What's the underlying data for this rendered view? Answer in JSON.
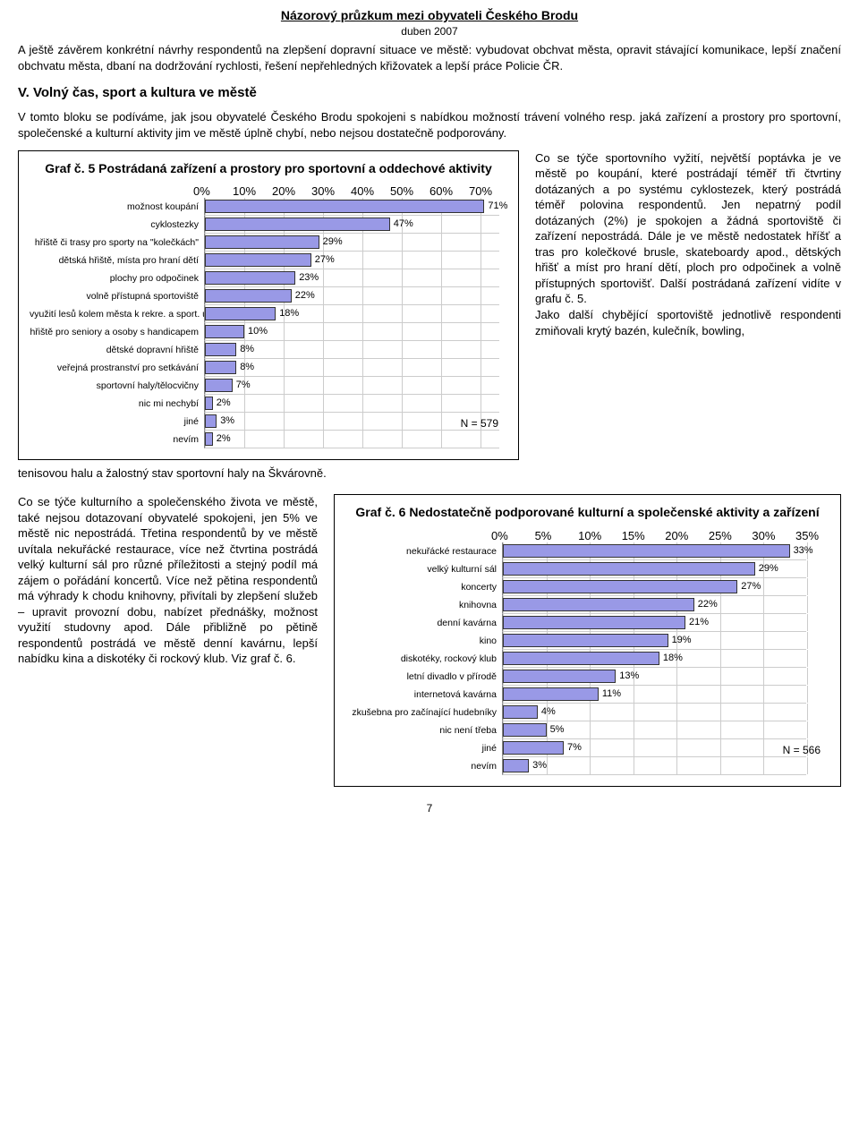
{
  "header": {
    "title": "Názorový průzkum mezi obyvateli Českého Brodu",
    "subtitle": "duben 2007"
  },
  "intro_para": "A ještě závěrem konkrétní návrhy respondentů na zlepšení dopravní situace ve městě: vybudovat obchvat města, opravit stávající komunikace, lepší značení obchvatu města, dbaní na dodržování rychlosti, řešení nepřehledných křižovatek a lepší práce Policie ČR.",
  "section_v": {
    "heading": "V.    Volný čas, sport a kultura ve městě",
    "para": "V tomto bloku se podíváme, jak jsou obyvatelé Českého Brodu spokojeni s nabídkou možností trávení volného resp. jaká zařízení a prostory pro sportovní, společenské a kulturní aktivity jim ve městě úplně chybí, nebo nejsou dostatečně podporovány."
  },
  "chart5": {
    "type": "bar",
    "title": "Graf č. 5 Postrádaná zařízení a prostory pro sportovní a oddechové aktivity",
    "label_width": 195,
    "track_width": 330,
    "x_max": 75,
    "ticks": [
      0,
      10,
      20,
      30,
      40,
      50,
      60,
      70
    ],
    "tick_suffix": "%",
    "bar_color": "#9999e6",
    "grid_color": "#cccccc",
    "border_color": "#333333",
    "label_fontsize": 10.5,
    "value_fontsize": 11,
    "n_label": "N = 579",
    "items": [
      {
        "label": "možnost koupání",
        "value": 71,
        "pct": "71%"
      },
      {
        "label": "cyklostezky",
        "value": 47,
        "pct": "47%"
      },
      {
        "label": "hřiště či trasy pro sporty na \"kolečkách\"",
        "value": 29,
        "pct": "29%"
      },
      {
        "label": "dětská hřiště, místa pro hraní dětí",
        "value": 27,
        "pct": "27%"
      },
      {
        "label": "plochy pro odpočinek",
        "value": 23,
        "pct": "23%"
      },
      {
        "label": "volně přístupná sportoviště",
        "value": 22,
        "pct": "22%"
      },
      {
        "label": "využití lesů kolem města k rekre. a sport. účelům",
        "value": 18,
        "pct": "18%"
      },
      {
        "label": "hřiště pro seniory a osoby s handicapem",
        "value": 10,
        "pct": "10%"
      },
      {
        "label": "dětské dopravní hřiště",
        "value": 8,
        "pct": "8%"
      },
      {
        "label": "veřejná prostranství pro setkávání",
        "value": 8,
        "pct": "8%"
      },
      {
        "label": "sportovní haly/tělocvičny",
        "value": 7,
        "pct": "7%"
      },
      {
        "label": "nic mi nechybí",
        "value": 2,
        "pct": "2%"
      },
      {
        "label": "jiné",
        "value": 3,
        "pct": "3%"
      },
      {
        "label": "nevím",
        "value": 2,
        "pct": "2%"
      }
    ]
  },
  "right_para5": "Co se týče sportovního vyžití, největší poptávka je ve městě po koupání, které postrádají téměř tři čtvrtiny dotázaných a po systému cyklostezek, který postrádá téměř polovina respondentů. Jen nepatrný podíl dotázaných (2%) je spokojen a žádná sportoviště či zařízení nepostrádá. Dále je ve městě nedostatek hříšť a tras pro kolečkové brusle, skateboardy apod., dětských hřišť a míst pro hraní dětí, ploch pro odpočinek a volně přístupných sportovišť. Další postrádaná zařízení vidíte v grafu č. 5.\nJako další chybějící sportoviště jednotlivě respondenti zmiňovali krytý bazén, kulečník, bowling,",
  "after_chart5": "tenisovou halu a žalostný stav sportovní haly na Škvárovně.",
  "left_para6": "Co se týče kulturního a společenského života ve městě, také nejsou dotazovaní obyvatelé spokojeni, jen 5% ve městě nic nepostrádá. Třetina respondentů by ve městě uvítala nekuřácké restaurace, více než čtvrtina postrádá velký kulturní sál pro různé příležitosti a stejný podíl má zájem o pořádání koncertů. Více než pětina respondentů má výhrady k chodu knihovny, přivítali by zlepšení služeb – upravit provozní dobu, nabízet přednášky, možnost využití studovny apod. Dále přibližně po pětině respondentů postrádá ve městě denní kavárnu, lepší nabídku kina a diskotéky či rockový klub. Viz graf č. 6.",
  "chart6": {
    "type": "bar",
    "title": "Graf č. 6 Nedostatečně podporované kulturní a společenské aktivity a zařízení",
    "label_width": 175,
    "track_width": 340,
    "x_max": 35,
    "ticks": [
      0,
      5,
      10,
      15,
      20,
      25,
      30,
      35
    ],
    "tick_suffix": "%",
    "bar_color": "#9999e6",
    "grid_color": "#cccccc",
    "border_color": "#333333",
    "label_fontsize": 10.5,
    "value_fontsize": 11,
    "n_label": "N = 566",
    "items": [
      {
        "label": "nekuřácké restaurace",
        "value": 33,
        "pct": "33%"
      },
      {
        "label": "velký kulturní sál",
        "value": 29,
        "pct": "29%"
      },
      {
        "label": "koncerty",
        "value": 27,
        "pct": "27%"
      },
      {
        "label": "knihovna",
        "value": 22,
        "pct": "22%"
      },
      {
        "label": "denní kavárna",
        "value": 21,
        "pct": "21%"
      },
      {
        "label": "kino",
        "value": 19,
        "pct": "19%"
      },
      {
        "label": "diskotéky, rockový klub",
        "value": 18,
        "pct": "18%"
      },
      {
        "label": "letní divadlo v přírodě",
        "value": 13,
        "pct": "13%"
      },
      {
        "label": "internetová kavárna",
        "value": 11,
        "pct": "11%"
      },
      {
        "label": "zkušebna pro začínající hudebníky",
        "value": 4,
        "pct": "4%"
      },
      {
        "label": "nic není třeba",
        "value": 5,
        "pct": "5%"
      },
      {
        "label": "jiné",
        "value": 7,
        "pct": "7%"
      },
      {
        "label": "nevím",
        "value": 3,
        "pct": "3%"
      }
    ]
  },
  "page_number": "7"
}
